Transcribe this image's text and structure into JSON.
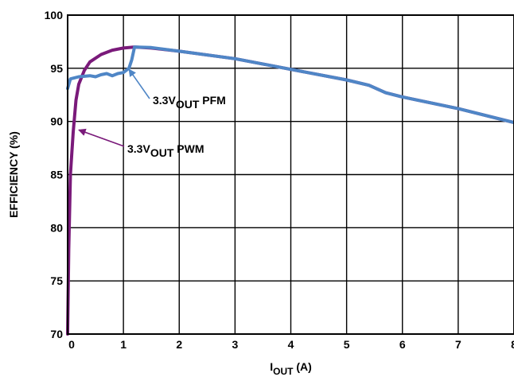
{
  "chart_data": {
    "type": "line",
    "xlabel_main": "I",
    "xlabel_sub": "OUT",
    "xlabel_unit": " (A)",
    "ylabel": "EFFICIENCY (%)",
    "xlim": [
      0,
      8
    ],
    "ylim": [
      70,
      100
    ],
    "x_ticks": [
      "0",
      "1",
      "2",
      "3",
      "4",
      "5",
      "6",
      "7",
      "8"
    ],
    "y_ticks": [
      "70",
      "75",
      "80",
      "85",
      "90",
      "95",
      "100"
    ],
    "grid": true,
    "series": [
      {
        "id": "pwm",
        "color": "#7a1a7a",
        "points": [
          [
            0,
            70
          ],
          [
            0.02,
            78
          ],
          [
            0.05,
            85
          ],
          [
            0.1,
            89
          ],
          [
            0.15,
            92
          ],
          [
            0.2,
            93.5
          ],
          [
            0.3,
            94.8
          ],
          [
            0.4,
            95.6
          ],
          [
            0.6,
            96.3
          ],
          [
            0.8,
            96.7
          ],
          [
            1.0,
            96.9
          ],
          [
            1.2,
            97.0
          ],
          [
            1.5,
            96.9
          ],
          [
            2.0,
            96.6
          ],
          [
            3.0,
            95.9
          ],
          [
            4.0,
            94.9
          ],
          [
            5.0,
            93.9
          ],
          [
            5.4,
            93.4
          ],
          [
            5.7,
            92.7
          ],
          [
            6.0,
            92.3
          ],
          [
            7.0,
            91.2
          ],
          [
            8.0,
            89.9
          ]
        ]
      },
      {
        "id": "pfm",
        "color": "#4f86c6",
        "points": [
          [
            0,
            93.1
          ],
          [
            0.05,
            94.0
          ],
          [
            0.2,
            94.2
          ],
          [
            0.4,
            94.3
          ],
          [
            0.5,
            94.2
          ],
          [
            0.6,
            94.4
          ],
          [
            0.7,
            94.5
          ],
          [
            0.8,
            94.3
          ],
          [
            0.9,
            94.5
          ],
          [
            1.0,
            94.6
          ],
          [
            1.1,
            95.0
          ],
          [
            1.15,
            95.8
          ],
          [
            1.2,
            97.0
          ],
          [
            1.5,
            96.95
          ],
          [
            2.0,
            96.6
          ],
          [
            3.0,
            95.9
          ],
          [
            4.0,
            94.9
          ],
          [
            5.0,
            93.9
          ],
          [
            5.4,
            93.4
          ],
          [
            5.7,
            92.7
          ],
          [
            6.0,
            92.3
          ],
          [
            7.0,
            91.2
          ],
          [
            8.0,
            89.9
          ]
        ]
      }
    ],
    "annotations": [
      {
        "id": "pfm",
        "prefix": "3.3V",
        "sub": "OUT",
        "suffix": " PFM"
      },
      {
        "id": "pwm",
        "prefix": "3.3V",
        "sub": "OUT",
        "suffix": " PWM"
      }
    ]
  }
}
